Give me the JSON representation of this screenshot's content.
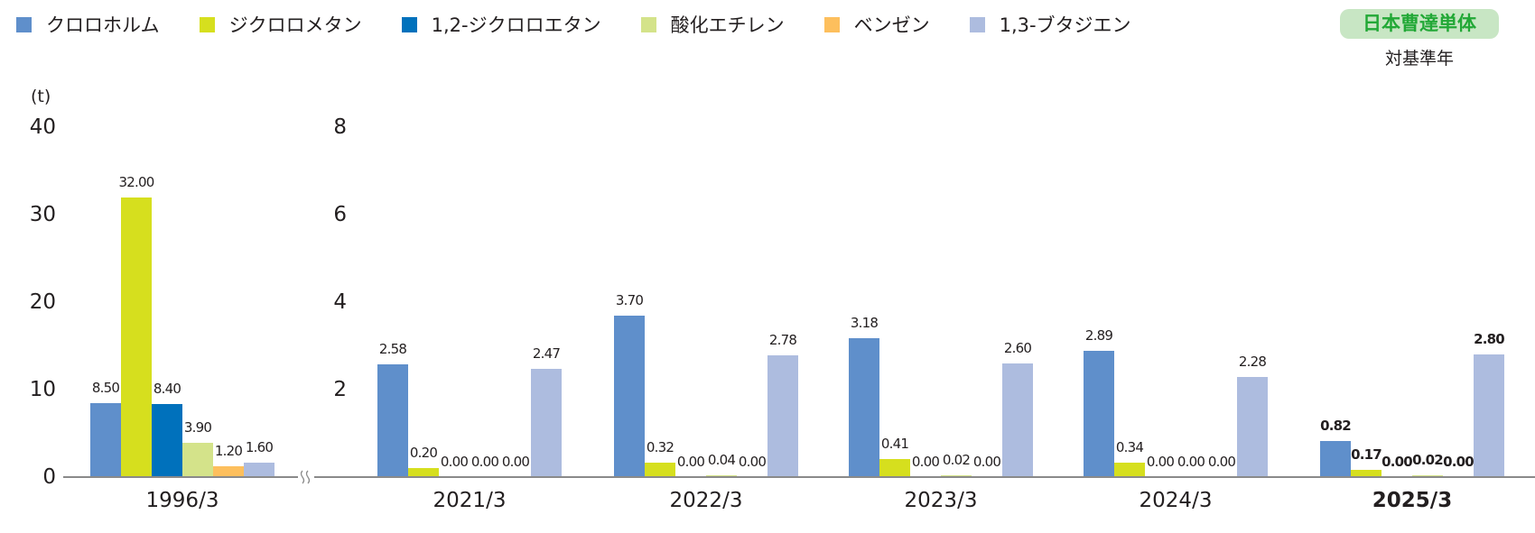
{
  "legend": [
    {
      "label": "クロロホルム",
      "color": "#5f8fcb"
    },
    {
      "label": "ジクロロメタン",
      "color": "#d6df1e"
    },
    {
      "label": "1,2-ジクロロエタン",
      "color": "#0071bc"
    },
    {
      "label": "酸化エチレン",
      "color": "#d4e38a"
    },
    {
      "label": "ベンゼン",
      "color": "#fdbf5d"
    },
    {
      "label": "1,3-ブタジエン",
      "color": "#adbcdf"
    }
  ],
  "badge": {
    "label": "日本曹達単体",
    "sublabel": "対基準年"
  },
  "unit_label": "(t)",
  "left_axis_ticks": [
    "0",
    "10",
    "20",
    "30",
    "40"
  ],
  "right_axis_ticks": [
    "2",
    "4",
    "6",
    "8"
  ],
  "chart_data": {
    "type": "bar",
    "title": "",
    "xlabel": "",
    "ylabel": "(t)",
    "categories": [
      "1996/3",
      "2021/3",
      "2022/3",
      "2023/3",
      "2024/3",
      "2025/3"
    ],
    "series": [
      {
        "name": "クロロホルム",
        "values": [
          8.5,
          2.58,
          3.7,
          3.18,
          2.89,
          0.82
        ]
      },
      {
        "name": "ジクロロメタン",
        "values": [
          32.0,
          0.2,
          0.32,
          0.41,
          0.34,
          0.17
        ]
      },
      {
        "name": "1,2-ジクロロエタン",
        "values": [
          8.4,
          0.0,
          0.0,
          0.0,
          0.0,
          0.0
        ]
      },
      {
        "name": "酸化エチレン",
        "values": [
          3.9,
          0.0,
          0.04,
          0.02,
          0.0,
          0.02
        ]
      },
      {
        "name": "ベンゼン",
        "values": [
          1.2,
          0.0,
          0.0,
          0.0,
          0.0,
          0.0
        ]
      },
      {
        "name": "1,3-ブタジエン",
        "values": [
          1.6,
          2.47,
          2.78,
          2.6,
          2.28,
          2.8
        ]
      }
    ],
    "value_labels": [
      [
        "8.50",
        "32.00",
        "8.40",
        "3.90",
        "1.20",
        "1.60"
      ],
      [
        "2.58",
        "0.20",
        "0.00",
        "0.00",
        "0.00",
        "2.47"
      ],
      [
        "3.70",
        "0.32",
        "0.00",
        "0.04",
        "0.00",
        "2.78"
      ],
      [
        "3.18",
        "0.41",
        "0.00",
        "0.02",
        "0.00",
        "2.60"
      ],
      [
        "2.89",
        "0.34",
        "0.00",
        "0.00",
        "0.00",
        "2.28"
      ],
      [
        "0.82",
        "0.17",
        "0.00",
        "0.02",
        "0.00",
        "2.80"
      ]
    ],
    "axes": [
      {
        "applies_to": [
          "1996/3"
        ],
        "ylim": [
          0,
          40
        ],
        "ticks": [
          0,
          10,
          20,
          30,
          40
        ]
      },
      {
        "applies_to": [
          "2021/3",
          "2022/3",
          "2023/3",
          "2024/3",
          "2025/3"
        ],
        "ylim": [
          0,
          8
        ],
        "ticks": [
          2,
          4,
          6,
          8
        ]
      }
    ],
    "axis_break_after": "1996/3",
    "highlighted_category": "2025/3",
    "legend_position": "top",
    "grid": false
  }
}
